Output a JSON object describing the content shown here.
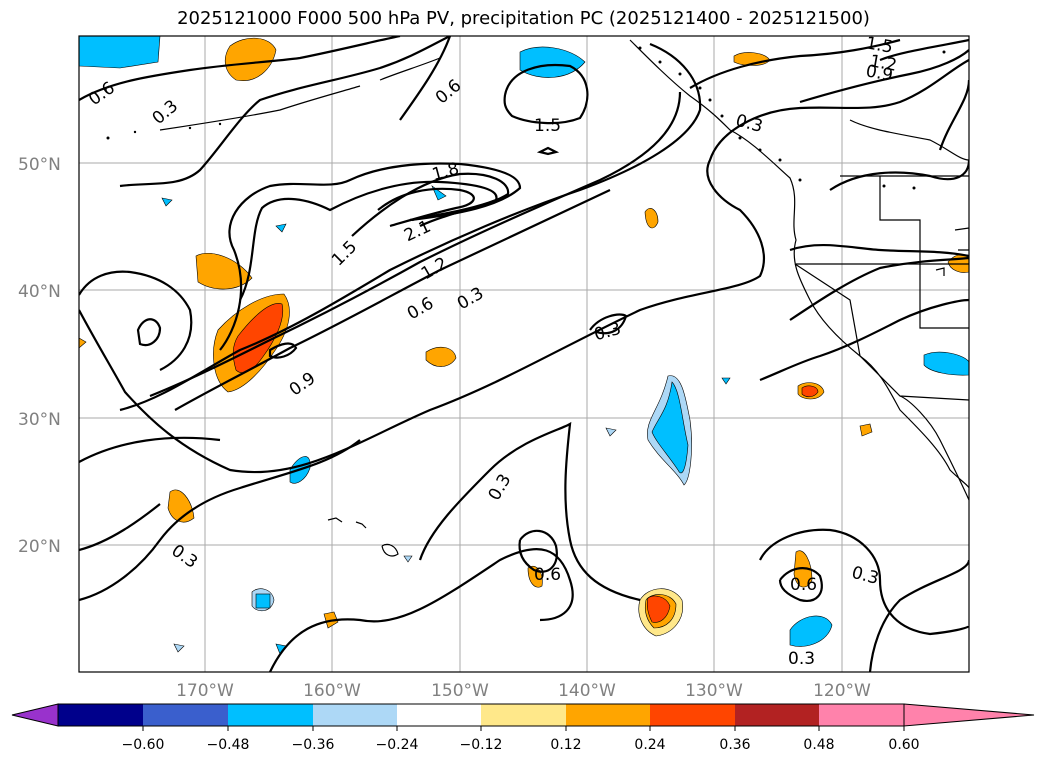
{
  "title": "2025121000 F000 500 hPa PV, precipitation PC (2025121400 - 2025121500)",
  "lat_labels": [
    "50°N",
    "40°N",
    "30°N",
    "20°N"
  ],
  "lon_labels": [
    "170°W",
    "160°W",
    "150°W",
    "140°W",
    "130°W",
    "120°W"
  ],
  "contour_labels": [
    "0.6",
    "0.3",
    "0.6",
    "1.5",
    "1.2",
    "0.9",
    "0.3",
    "1.5",
    "1.8",
    "2.1",
    "1.5",
    "1.2",
    "0.6",
    "0.3",
    "0.3",
    "0.9",
    "0.3",
    "0.3",
    "0.6",
    "0.6",
    "0.3",
    "0.3"
  ],
  "colorbar": {
    "ticks": [
      "−0.60",
      "−0.48",
      "−0.36",
      "−0.24",
      "−0.12",
      "0.12",
      "0.24",
      "0.36",
      "0.48",
      "0.60"
    ],
    "colors": [
      "#9932CC",
      "#00008B",
      "#3A5FCD",
      "#00BFFF",
      "#ADD8F6",
      "#FFFFFF",
      "#FFE88A",
      "#FFA500",
      "#FF4500",
      "#B22222",
      "#FF82AB"
    ]
  }
}
